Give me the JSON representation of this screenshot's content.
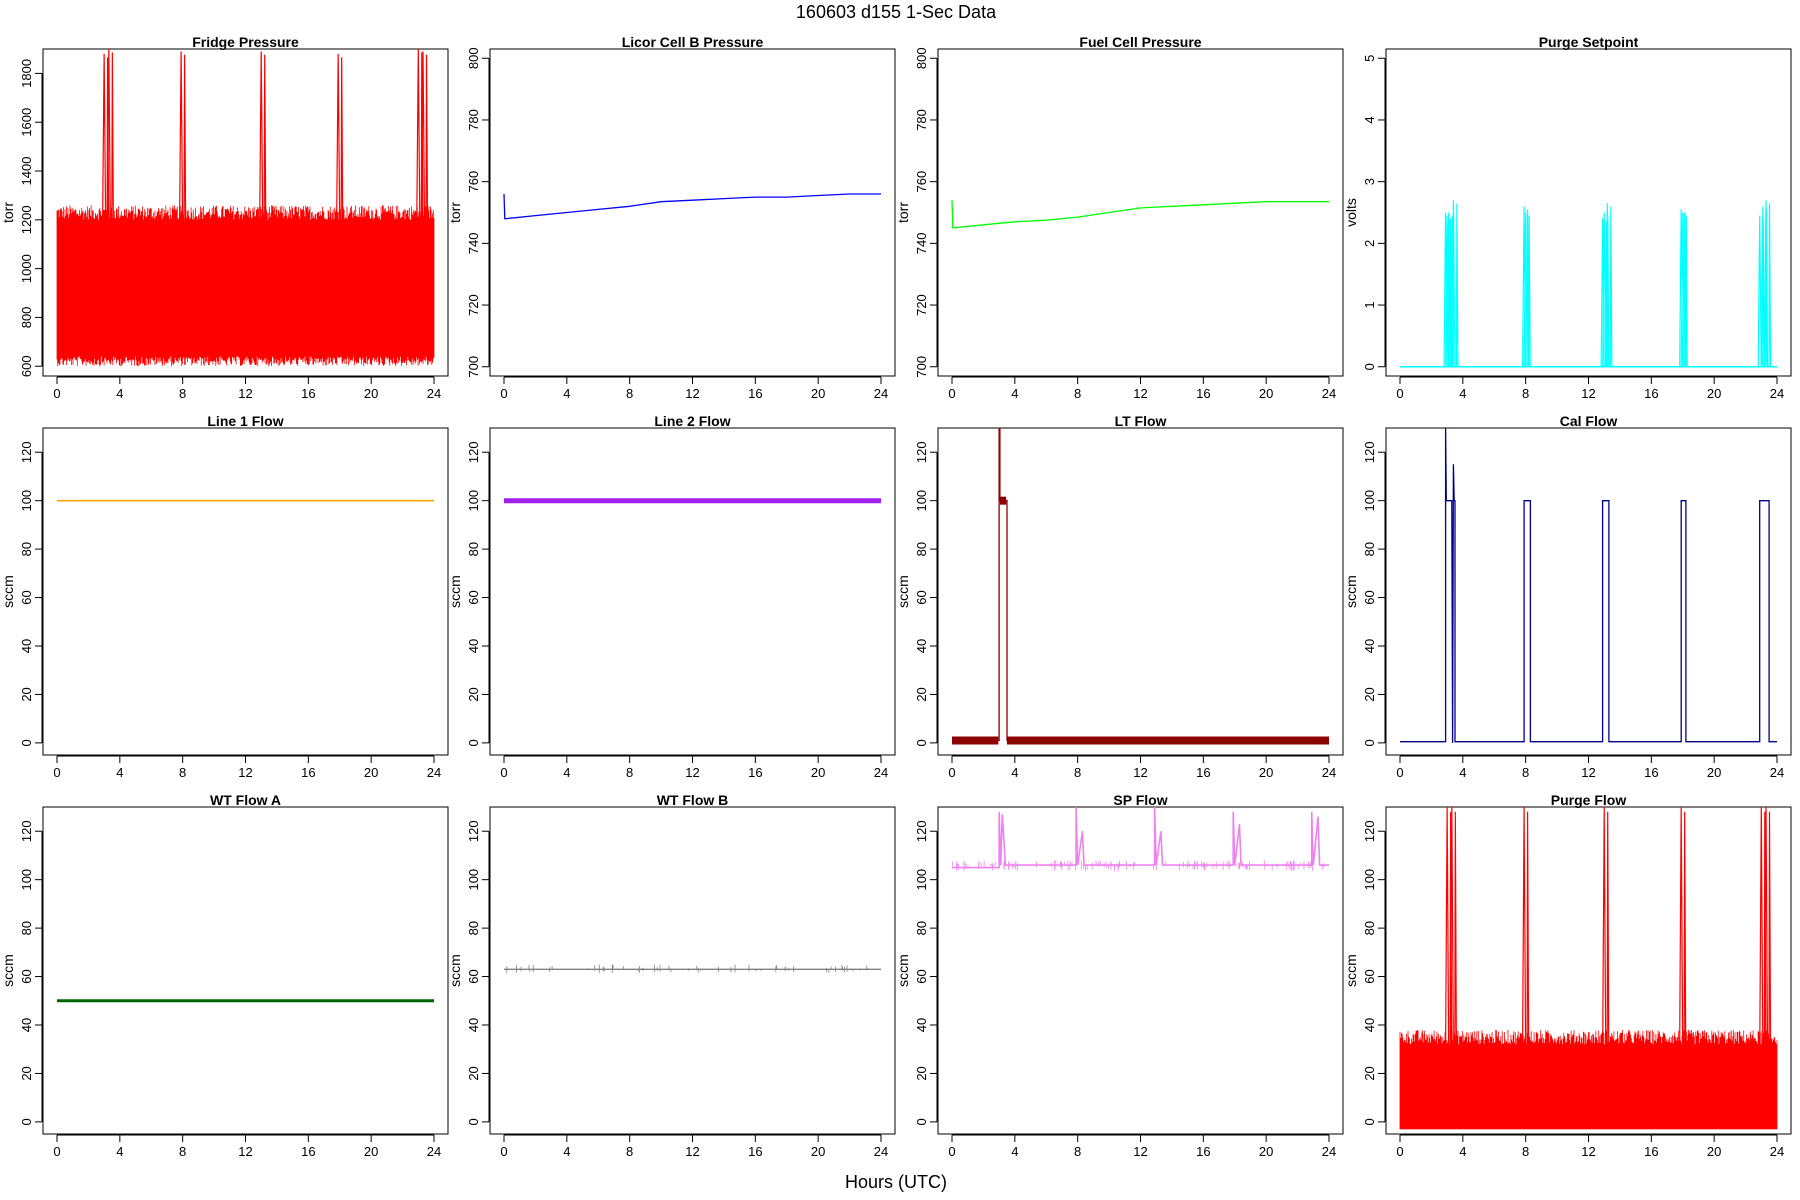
{
  "figure": {
    "title": "160603   d155   1-Sec Data",
    "xlabel": "Hours (UTC)"
  },
  "chart_data": [
    {
      "id": "fridge",
      "type": "line",
      "title": "Fridge Pressure",
      "ylabel": "torr",
      "color": "#ff0000",
      "xlim": [
        0,
        24
      ],
      "ylim": [
        560,
        1900
      ],
      "yticks": [
        600,
        800,
        1000,
        1200,
        1400,
        1600,
        1800
      ],
      "xticks": [
        0,
        4,
        8,
        12,
        16,
        20,
        24
      ],
      "band": {
        "low": 640,
        "high": 1200,
        "noise_high": 1260,
        "noise_low": 600
      },
      "spikes": [
        {
          "x": 3.0,
          "y": 1880
        },
        {
          "x": 3.3,
          "y": 1900
        },
        {
          "x": 7.9,
          "y": 1890
        },
        {
          "x": 13.0,
          "y": 1890
        },
        {
          "x": 17.9,
          "y": 1880
        },
        {
          "x": 23.0,
          "y": 1900
        },
        {
          "x": 23.3,
          "y": 1890
        }
      ],
      "series": [
        {
          "name": "Fridge Pressure"
        }
      ]
    },
    {
      "id": "licor",
      "type": "line",
      "title": "Licor Cell B Pressure",
      "ylabel": "torr",
      "color": "#0000ff",
      "xlim": [
        0,
        24
      ],
      "ylim": [
        697,
        803
      ],
      "yticks": [
        700,
        720,
        740,
        760,
        780,
        800
      ],
      "xticks": [
        0,
        4,
        8,
        12,
        16,
        20,
        24
      ],
      "series": [
        {
          "name": "Licor Cell B Pressure",
          "x": [
            0,
            0.05,
            0.1,
            2,
            4,
            6,
            8,
            10,
            12,
            14,
            16,
            18,
            20,
            22,
            24
          ],
          "y": [
            756,
            748,
            748,
            749,
            750,
            751,
            752,
            753.5,
            754,
            754.5,
            755,
            755,
            755.5,
            756,
            756
          ]
        }
      ]
    },
    {
      "id": "fuel",
      "type": "line",
      "title": "Fuel Cell Pressure",
      "ylabel": "torr",
      "color": "#00ff00",
      "xlim": [
        0,
        24
      ],
      "ylim": [
        697,
        803
      ],
      "yticks": [
        700,
        720,
        740,
        760,
        780,
        800
      ],
      "xticks": [
        0,
        4,
        8,
        12,
        16,
        20,
        24
      ],
      "series": [
        {
          "name": "Fuel Cell Pressure",
          "x": [
            0,
            0.05,
            0.1,
            2,
            4,
            6,
            8,
            10,
            12,
            14,
            16,
            18,
            20,
            22,
            24
          ],
          "y": [
            754,
            745,
            745,
            746,
            747,
            747.5,
            748.5,
            750,
            751.5,
            752,
            752.5,
            753,
            753.5,
            753.5,
            753.5
          ]
        }
      ]
    },
    {
      "id": "purge_setpoint",
      "type": "line",
      "title": "Purge Setpoint",
      "ylabel": "volts",
      "color": "#00ffff",
      "xlim": [
        0,
        24
      ],
      "ylim": [
        -0.15,
        5.15
      ],
      "yticks": [
        0,
        1,
        2,
        3,
        4,
        5
      ],
      "xticks": [
        0,
        4,
        8,
        12,
        16,
        20,
        24
      ],
      "baseline": 0,
      "spikes": [
        {
          "x": 2.9,
          "y": 2.5
        },
        {
          "x": 3.0,
          "y": 2.45
        },
        {
          "x": 3.1,
          "y": 2.5
        },
        {
          "x": 3.4,
          "y": 2.7
        },
        {
          "x": 7.9,
          "y": 2.6
        },
        {
          "x": 8.0,
          "y": 2.5
        },
        {
          "x": 12.9,
          "y": 2.4
        },
        {
          "x": 13.0,
          "y": 2.5
        },
        {
          "x": 13.2,
          "y": 2.65
        },
        {
          "x": 17.9,
          "y": 2.55
        },
        {
          "x": 18.0,
          "y": 2.5
        },
        {
          "x": 22.9,
          "y": 2.45
        },
        {
          "x": 23.1,
          "y": 2.6
        },
        {
          "x": 23.3,
          "y": 2.7
        }
      ],
      "series": [
        {
          "name": "Purge Setpoint"
        }
      ]
    },
    {
      "id": "line1",
      "type": "line",
      "title": "Line 1 Flow",
      "ylabel": "sccm",
      "color": "#ffa500",
      "xlim": [
        0,
        24
      ],
      "ylim": [
        -5,
        130
      ],
      "yticks": [
        0,
        20,
        40,
        60,
        80,
        100,
        120
      ],
      "xticks": [
        0,
        4,
        8,
        12,
        16,
        20,
        24
      ],
      "series": [
        {
          "name": "Line 1 Flow",
          "x": [
            0,
            24
          ],
          "y": [
            100,
            100
          ]
        }
      ]
    },
    {
      "id": "line2",
      "type": "line",
      "title": "Line 2 Flow",
      "ylabel": "sccm",
      "color": "#a020f0",
      "xlim": [
        0,
        24
      ],
      "ylim": [
        -5,
        130
      ],
      "yticks": [
        0,
        20,
        40,
        60,
        80,
        100,
        120
      ],
      "xticks": [
        0,
        4,
        8,
        12,
        16,
        20,
        24
      ],
      "series": [
        {
          "name": "Line 2 Flow",
          "x": [
            0,
            24
          ],
          "y": [
            100,
            100
          ]
        }
      ]
    },
    {
      "id": "lt",
      "type": "line",
      "title": "LT Flow",
      "ylabel": "sccm",
      "color": "#8b0000",
      "xlim": [
        0,
        24
      ],
      "ylim": [
        -5,
        130
      ],
      "yticks": [
        0,
        20,
        40,
        60,
        80,
        100,
        120
      ],
      "xticks": [
        0,
        4,
        8,
        12,
        16,
        20,
        24
      ],
      "series": [
        {
          "name": "LT Flow",
          "x": [
            0,
            3.0,
            3.0,
            3.05,
            3.05,
            3.1,
            3.1,
            3.5,
            3.5,
            24
          ],
          "y": [
            1,
            1,
            130,
            130,
            100,
            100,
            100,
            100,
            1,
            1
          ]
        }
      ]
    },
    {
      "id": "cal",
      "type": "line",
      "title": "Cal Flow",
      "ylabel": "sccm",
      "color": "#00008b",
      "xlim": [
        0,
        24
      ],
      "ylim": [
        -5,
        130
      ],
      "yticks": [
        0,
        20,
        40,
        60,
        80,
        100,
        120
      ],
      "xticks": [
        0,
        4,
        8,
        12,
        16,
        20,
        24
      ],
      "series": [
        {
          "name": "Cal Flow",
          "x": [
            0,
            2.9,
            2.9,
            2.95,
            3.0,
            3.3,
            3.35,
            3.4,
            3.45,
            3.5,
            3.5,
            7.9,
            7.9,
            8.3,
            8.3,
            12.9,
            12.9,
            13.3,
            13.3,
            17.9,
            17.9,
            18.2,
            18.2,
            22.9,
            22.9,
            23.5,
            23.5,
            24
          ],
          "y": [
            0.5,
            0.5,
            130,
            100,
            100,
            100,
            0,
            115,
            100,
            100,
            0.5,
            0.5,
            100,
            100,
            0.5,
            0.5,
            100,
            100,
            0.5,
            0.5,
            100,
            100,
            0.5,
            0.5,
            100,
            100,
            0.5,
            0.5
          ]
        }
      ]
    },
    {
      "id": "wta",
      "type": "line",
      "title": "WT Flow A",
      "ylabel": "sccm",
      "color": "#006400",
      "xlim": [
        0,
        24
      ],
      "ylim": [
        -5,
        130
      ],
      "yticks": [
        0,
        20,
        40,
        60,
        80,
        100,
        120
      ],
      "xticks": [
        0,
        4,
        8,
        12,
        16,
        20,
        24
      ],
      "series": [
        {
          "name": "WT Flow A",
          "x": [
            0,
            24
          ],
          "y": [
            50,
            50
          ]
        }
      ]
    },
    {
      "id": "wtb",
      "type": "line",
      "title": "WT Flow B",
      "ylabel": "sccm",
      "color": "#808080",
      "xlim": [
        0,
        24
      ],
      "ylim": [
        -5,
        130
      ],
      "yticks": [
        0,
        20,
        40,
        60,
        80,
        100,
        120
      ],
      "xticks": [
        0,
        4,
        8,
        12,
        16,
        20,
        24
      ],
      "series": [
        {
          "name": "WT Flow B",
          "x": [
            0,
            24
          ],
          "y": [
            63,
            63
          ]
        }
      ]
    },
    {
      "id": "sp",
      "type": "line",
      "title": "SP Flow",
      "ylabel": "sccm",
      "color": "#ee82ee",
      "xlim": [
        0,
        24
      ],
      "ylim": [
        -5,
        130
      ],
      "yticks": [
        0,
        20,
        40,
        60,
        80,
        100,
        120
      ],
      "xticks": [
        0,
        4,
        8,
        12,
        16,
        20,
        24
      ],
      "series": [
        {
          "name": "SP Flow",
          "x": [
            0,
            3.0,
            3.0,
            3.1,
            3.2,
            3.4,
            3.5,
            7.9,
            7.9,
            8.0,
            8.3,
            8.4,
            12.9,
            12.9,
            13.0,
            13.3,
            13.4,
            17.9,
            17.9,
            18.0,
            18.3,
            18.4,
            22.9,
            22.9,
            23.0,
            23.3,
            23.4,
            24
          ],
          "y": [
            105,
            105,
            128,
            106,
            127,
            106,
            106,
            106,
            130,
            106,
            120,
            106,
            106,
            130,
            106,
            120,
            106,
            106,
            128,
            106,
            123,
            106,
            106,
            128,
            106,
            126,
            106,
            106
          ]
        }
      ]
    },
    {
      "id": "purge_flow",
      "type": "line",
      "title": "Purge Flow",
      "ylabel": "sccm",
      "color": "#ff0000",
      "xlim": [
        0,
        24
      ],
      "ylim": [
        -5,
        130
      ],
      "yticks": [
        0,
        20,
        40,
        60,
        80,
        100,
        120
      ],
      "xticks": [
        0,
        4,
        8,
        12,
        16,
        20,
        24
      ],
      "band": {
        "low": -3,
        "high": 32,
        "noise_high": 38,
        "noise_low": -3
      },
      "spikes": [
        {
          "x": 3.0,
          "y": 130
        },
        {
          "x": 3.3,
          "y": 130
        },
        {
          "x": 7.9,
          "y": 130
        },
        {
          "x": 13.0,
          "y": 130
        },
        {
          "x": 17.9,
          "y": 130
        },
        {
          "x": 23.0,
          "y": 130
        },
        {
          "x": 23.3,
          "y": 130
        }
      ],
      "series": [
        {
          "name": "Purge Flow"
        }
      ]
    }
  ]
}
